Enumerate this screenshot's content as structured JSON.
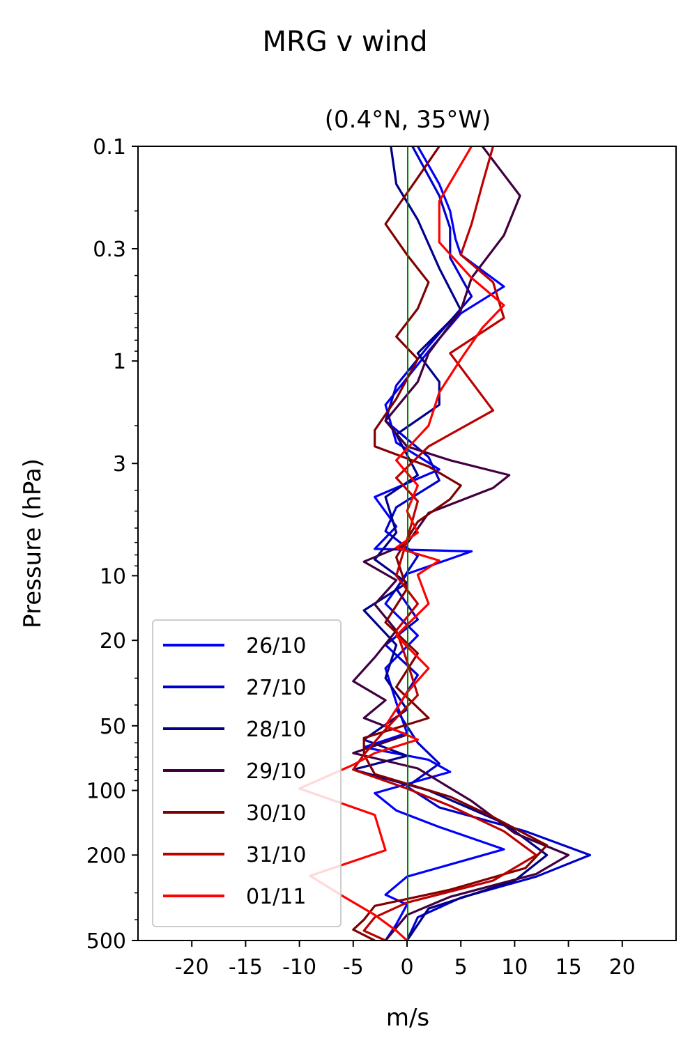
{
  "chart_data": {
    "type": "line",
    "suptitle": "MRG v wind",
    "title": "(0.4°N, 35°W)",
    "xlabel": "m/s",
    "ylabel": "Pressure (hPa)",
    "xlim": [
      -25,
      25
    ],
    "ylim": [
      500,
      0.1
    ],
    "yscale": "log",
    "x_ticks": [
      -20,
      -15,
      -10,
      -5,
      0,
      5,
      10,
      15,
      20
    ],
    "x_tick_labels": [
      "-20",
      "-15",
      "-10",
      "-5",
      "0",
      "5",
      "10",
      "15",
      "20"
    ],
    "y_ticks": [
      0.1,
      0.3,
      1,
      3,
      10,
      20,
      50,
      100,
      200,
      500
    ],
    "y_tick_labels": [
      "0.1",
      "0.3",
      "1",
      "3",
      "10",
      "20",
      "50",
      "100",
      "200",
      "500"
    ],
    "zero_line_color": "#008000",
    "legend_position": "lower-left",
    "series": [
      {
        "name": "26/10",
        "color": "#0000ff",
        "points": [
          [
            1,
            0.1
          ],
          [
            3,
            0.15
          ],
          [
            4,
            0.2
          ],
          [
            4.5,
            0.27
          ],
          [
            5,
            0.32
          ],
          [
            9,
            0.45
          ],
          [
            5,
            0.6
          ],
          [
            2,
            0.9
          ],
          [
            0,
            1.2
          ],
          [
            -2,
            1.6
          ],
          [
            -1,
            2.4
          ],
          [
            3,
            3.2
          ],
          [
            -3,
            4.3
          ],
          [
            -1,
            5.9
          ],
          [
            -3,
            7.5
          ],
          [
            6,
            7.7
          ],
          [
            0,
            9.8
          ],
          [
            -2,
            13.5
          ],
          [
            1,
            19
          ],
          [
            -2,
            27
          ],
          [
            -1,
            39
          ],
          [
            0,
            54
          ],
          [
            -4,
            63
          ],
          [
            2,
            72
          ],
          [
            4,
            82
          ],
          [
            -3,
            103
          ],
          [
            -1,
            124
          ],
          [
            3,
            148
          ],
          [
            9,
            188
          ],
          [
            0,
            252
          ],
          [
            -2,
            306
          ],
          [
            0,
            340
          ],
          [
            -1,
            420
          ],
          [
            -2,
            500
          ]
        ]
      },
      {
        "name": "27/10",
        "color": "#0000cc",
        "points": [
          [
            0.5,
            0.1
          ],
          [
            3,
            0.17
          ],
          [
            4,
            0.24
          ],
          [
            4,
            0.33
          ],
          [
            6,
            0.5
          ],
          [
            2,
            0.85
          ],
          [
            -1,
            1.3
          ],
          [
            -2,
            1.9
          ],
          [
            2,
            2.8
          ],
          [
            3,
            3.6
          ],
          [
            -1,
            4.8
          ],
          [
            -2,
            6.2
          ],
          [
            1,
            8.1
          ],
          [
            -1,
            11.5
          ],
          [
            1,
            16
          ],
          [
            -2,
            21
          ],
          [
            1,
            29
          ],
          [
            -1,
            42
          ],
          [
            1,
            60
          ],
          [
            3,
            75
          ],
          [
            0,
            96
          ],
          [
            3,
            120
          ],
          [
            11,
            155
          ],
          [
            17,
            200
          ],
          [
            12,
            252
          ],
          [
            5,
            316
          ],
          [
            1,
            390
          ],
          [
            0,
            500
          ]
        ]
      },
      {
        "name": "28/10",
        "color": "#00008b",
        "points": [
          [
            -1.5,
            0.1
          ],
          [
            -1,
            0.15
          ],
          [
            1,
            0.22
          ],
          [
            3,
            0.37
          ],
          [
            5,
            0.58
          ],
          [
            1,
            0.92
          ],
          [
            3,
            1.25
          ],
          [
            3,
            1.6
          ],
          [
            -1,
            2.2
          ],
          [
            1,
            3.4
          ],
          [
            -2,
            4.3
          ],
          [
            -1,
            6.3
          ],
          [
            -3,
            8.4
          ],
          [
            0,
            10.8
          ],
          [
            -4,
            14.5
          ],
          [
            -1,
            21
          ],
          [
            -2,
            30
          ],
          [
            0,
            42
          ],
          [
            -4,
            58
          ],
          [
            0,
            69
          ],
          [
            -5,
            80
          ],
          [
            2,
            100
          ],
          [
            9,
            142
          ],
          [
            13,
            200
          ],
          [
            10,
            263
          ],
          [
            2,
            355
          ],
          [
            0,
            500
          ]
        ]
      },
      {
        "name": "29/10",
        "color": "#400040",
        "points": [
          [
            7,
            0.1
          ],
          [
            10.5,
            0.17
          ],
          [
            9,
            0.26
          ],
          [
            6,
            0.41
          ],
          [
            5,
            0.58
          ],
          [
            2,
            0.92
          ],
          [
            1,
            1.25
          ],
          [
            -2,
            1.9
          ],
          [
            0,
            2.5
          ],
          [
            4,
            2.9
          ],
          [
            9.5,
            3.4
          ],
          [
            8,
            3.9
          ],
          [
            2,
            5.1
          ],
          [
            0,
            7.1
          ],
          [
            -4,
            8.6
          ],
          [
            -1,
            10.5
          ],
          [
            -3,
            13.6
          ],
          [
            -1,
            18
          ],
          [
            -3,
            24
          ],
          [
            -5,
            31
          ],
          [
            -2,
            38
          ],
          [
            -4,
            46
          ],
          [
            0,
            55
          ],
          [
            -5,
            67
          ],
          [
            1,
            79
          ],
          [
            6,
            112
          ],
          [
            10,
            158
          ],
          [
            15,
            200
          ],
          [
            12,
            245
          ],
          [
            4,
            313
          ],
          [
            0,
            380
          ],
          [
            -2,
            500
          ]
        ]
      },
      {
        "name": "30/10",
        "color": "#800000",
        "points": [
          [
            3,
            0.1
          ],
          [
            1,
            0.14
          ],
          [
            -2,
            0.23
          ],
          [
            0,
            0.32
          ],
          [
            2,
            0.43
          ],
          [
            1,
            0.57
          ],
          [
            -1,
            0.77
          ],
          [
            1,
            0.98
          ],
          [
            -1,
            1.5
          ],
          [
            -3,
            2.1
          ],
          [
            -3,
            2.5
          ],
          [
            2,
            3.1
          ],
          [
            5,
            3.8
          ],
          [
            4,
            4.4
          ],
          [
            1,
            5.6
          ],
          [
            -1,
            8.2
          ],
          [
            0,
            11.5
          ],
          [
            -2,
            16.5
          ],
          [
            1,
            23
          ],
          [
            -1,
            33
          ],
          [
            2,
            46
          ],
          [
            -4,
            57
          ],
          [
            -4,
            68
          ],
          [
            -3,
            84
          ],
          [
            4,
            107
          ],
          [
            8,
            133
          ],
          [
            13,
            180
          ],
          [
            11,
            230
          ],
          [
            4,
            290
          ],
          [
            -3,
            345
          ],
          [
            -4,
            400
          ],
          [
            -5,
            445
          ],
          [
            -3,
            500
          ]
        ]
      },
      {
        "name": "31/10",
        "color": "#bb0000",
        "points": [
          [
            8,
            0.1
          ],
          [
            7,
            0.15
          ],
          [
            6,
            0.23
          ],
          [
            5,
            0.32
          ],
          [
            8,
            0.43
          ],
          [
            9,
            0.63
          ],
          [
            4,
            0.92
          ],
          [
            6,
            1.25
          ],
          [
            8,
            1.7
          ],
          [
            2,
            2.5
          ],
          [
            -1,
            3.5
          ],
          [
            1,
            4.5
          ],
          [
            0,
            6.8
          ],
          [
            -1,
            10
          ],
          [
            1,
            13.5
          ],
          [
            -1,
            18
          ],
          [
            0,
            25
          ],
          [
            1,
            36
          ],
          [
            -2,
            52
          ],
          [
            -4,
            68
          ],
          [
            -5,
            80
          ],
          [
            0,
            98
          ],
          [
            4,
            118
          ],
          [
            9,
            155
          ],
          [
            12,
            200
          ],
          [
            8,
            263
          ],
          [
            0,
            333
          ],
          [
            -3,
            390
          ],
          [
            -4,
            450
          ],
          [
            -2,
            500
          ]
        ]
      },
      {
        "name": "01/11",
        "color": "#ff0000",
        "points": [
          [
            6,
            0.1
          ],
          [
            3,
            0.18
          ],
          [
            3,
            0.28
          ],
          [
            6,
            0.41
          ],
          [
            9,
            0.55
          ],
          [
            7,
            0.7
          ],
          [
            5,
            0.98
          ],
          [
            3,
            1.4
          ],
          [
            2,
            2
          ],
          [
            -1,
            2.9
          ],
          [
            1,
            3.8
          ],
          [
            0,
            5
          ],
          [
            1,
            6.3
          ],
          [
            -1,
            7.4
          ],
          [
            3,
            8.5
          ],
          [
            1,
            9.9
          ],
          [
            2,
            13.5
          ],
          [
            -1,
            19
          ],
          [
            2,
            27
          ],
          [
            0,
            35
          ],
          [
            -2,
            50
          ],
          [
            1,
            58
          ],
          [
            -3,
            67
          ],
          [
            -5,
            76
          ],
          [
            -10,
            98
          ],
          [
            -3,
            130
          ],
          [
            -2,
            190
          ],
          [
            -9,
            250
          ],
          [
            -6,
            310
          ],
          [
            -3,
            380
          ],
          [
            -1,
            450
          ],
          [
            0,
            500
          ]
        ]
      }
    ]
  }
}
